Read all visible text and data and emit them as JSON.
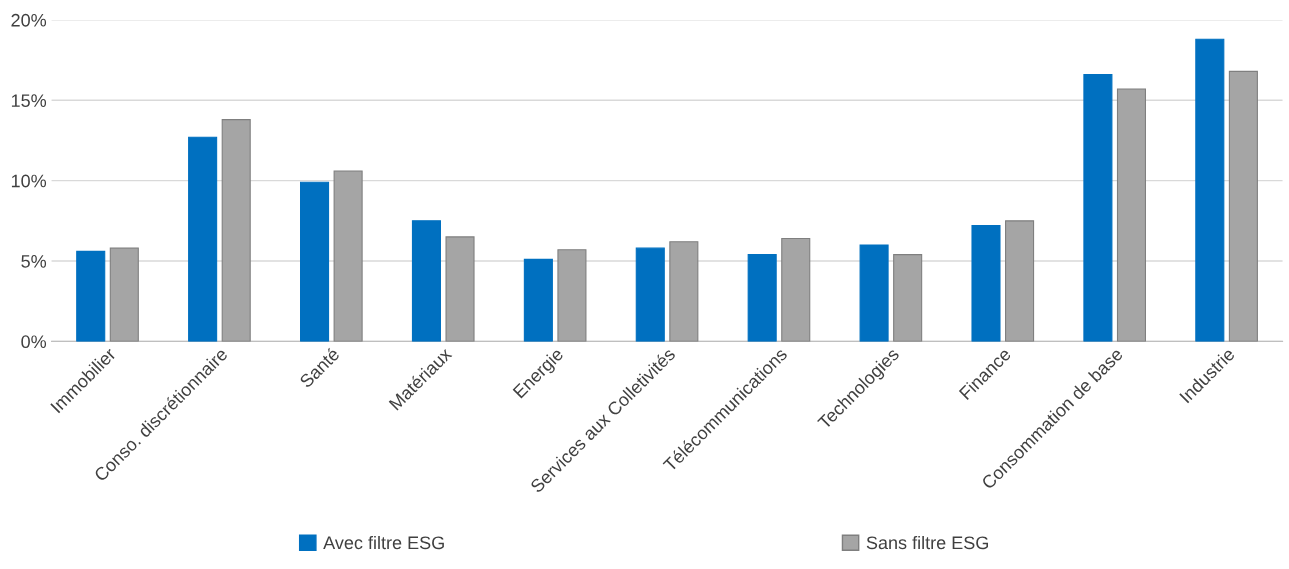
{
  "chart_data": {
    "type": "bar",
    "categories": [
      "Immobilier",
      "Conso. discrétionnaire",
      "Santé",
      "Matériaux",
      "Energie",
      "Services aux Colletivités",
      "Télécommunications",
      "Technologies",
      "Finance",
      "Consommation de base",
      "Industrie"
    ],
    "series": [
      {
        "name": "Avec filtre ESG",
        "color": "#0070c0",
        "values": [
          5.6,
          12.7,
          9.9,
          7.5,
          5.1,
          5.8,
          5.4,
          6.0,
          7.2,
          16.6,
          18.8
        ]
      },
      {
        "name": "Sans filtre ESG",
        "color": "#a5a5a5",
        "values": [
          5.8,
          13.8,
          10.6,
          6.5,
          5.7,
          6.2,
          6.4,
          5.4,
          7.5,
          15.7,
          16.8
        ]
      }
    ],
    "ylim": [
      0,
      20
    ],
    "yticks": [
      {
        "value": 0,
        "label": "0%"
      },
      {
        "value": 5,
        "label": "5%"
      },
      {
        "value": 10,
        "label": "10%"
      },
      {
        "value": 15,
        "label": "15%"
      },
      {
        "value": 20,
        "label": "20%"
      }
    ],
    "grid": "y",
    "legend": "bottom"
  }
}
